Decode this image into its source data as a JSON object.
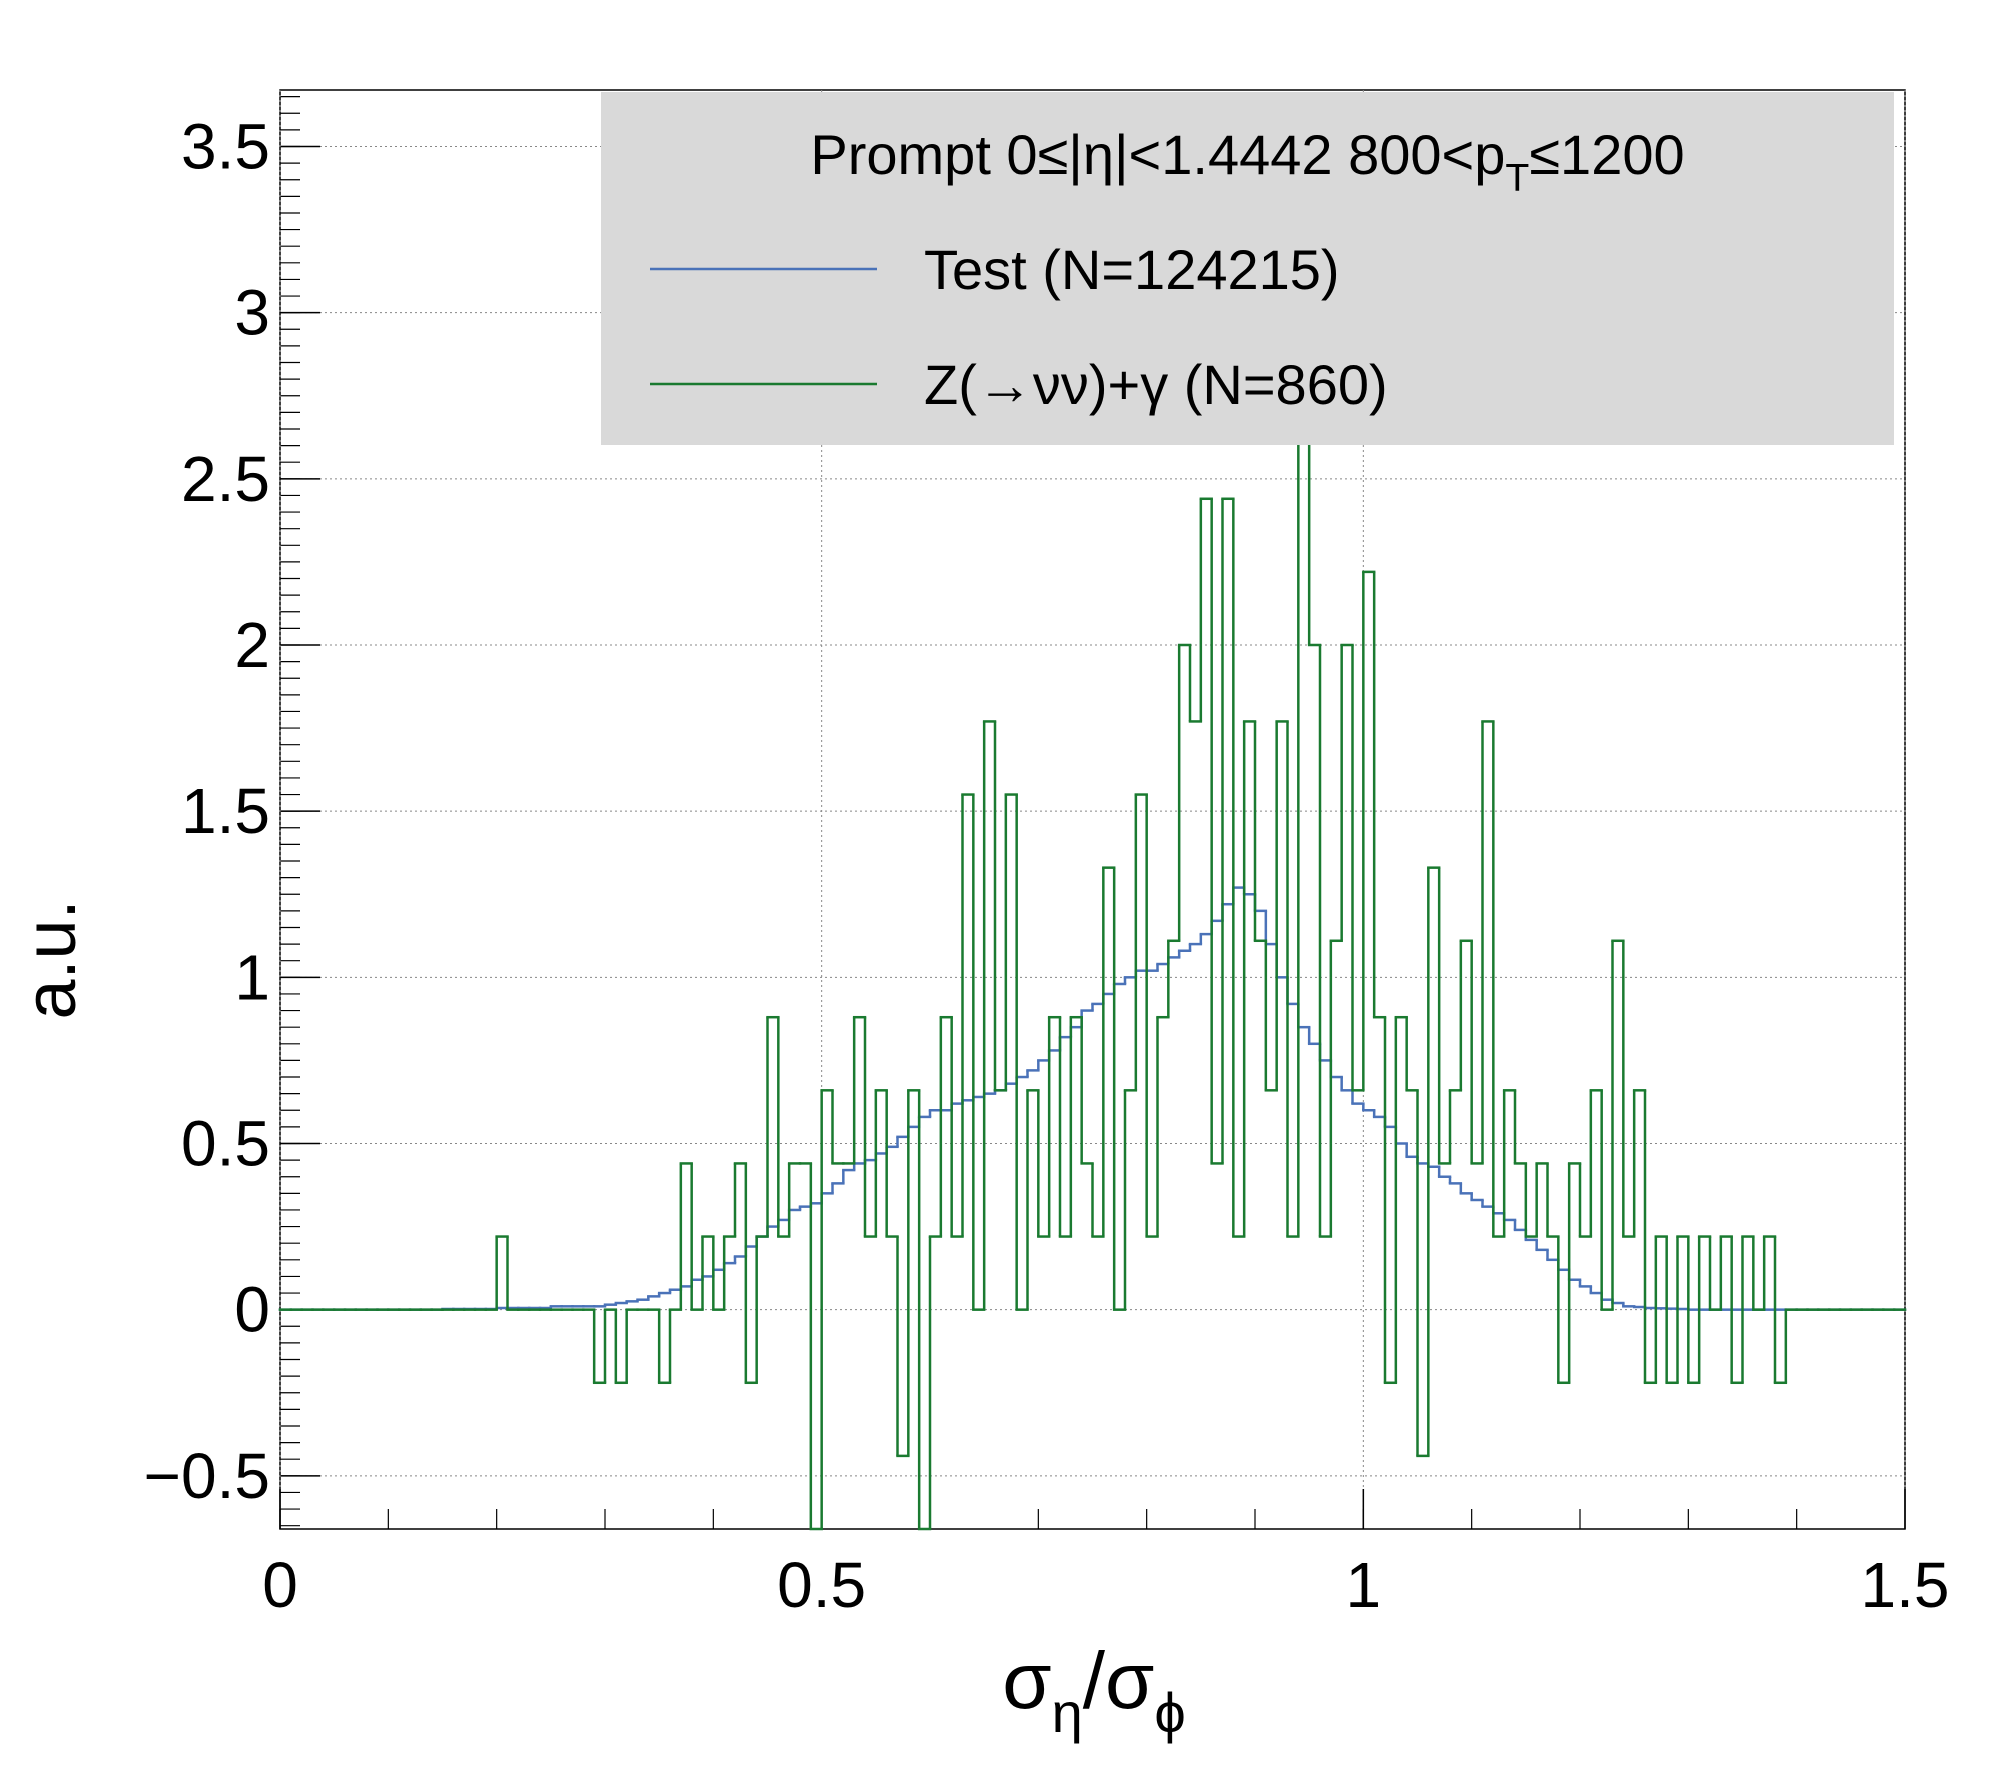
{
  "chart_data": {
    "type": "histogram",
    "legend_title": [
      "Prompt  0≤|η|<1.4442  800<p",
      "T",
      "≤1200"
    ],
    "xlabel": [
      "σ",
      "η",
      "/σ",
      "ϕ"
    ],
    "ylabel": "a.u.",
    "bins": [
      0,
      0.01,
      0.02,
      0.03,
      0.04,
      0.05,
      0.06,
      0.07,
      0.08,
      0.09,
      0.1,
      0.11,
      0.12,
      0.13,
      0.14,
      0.15,
      0.16,
      0.17,
      0.18,
      0.19,
      0.2,
      0.21,
      0.22,
      0.23,
      0.24,
      0.25,
      0.26,
      0.27,
      0.28,
      0.29,
      0.3,
      0.31,
      0.32,
      0.33,
      0.34,
      0.35,
      0.36,
      0.37,
      0.38,
      0.39,
      0.4,
      0.41,
      0.42,
      0.43,
      0.44,
      0.45,
      0.46,
      0.47,
      0.48,
      0.49,
      0.5,
      0.51,
      0.52,
      0.53,
      0.54,
      0.55,
      0.56,
      0.57,
      0.58,
      0.59,
      0.6,
      0.61,
      0.62,
      0.63,
      0.64,
      0.65,
      0.66,
      0.67,
      0.68,
      0.69,
      0.7,
      0.71,
      0.72,
      0.73,
      0.74,
      0.75,
      0.76,
      0.77,
      0.78,
      0.79,
      0.8,
      0.81,
      0.82,
      0.83,
      0.84,
      0.85,
      0.86,
      0.87,
      0.88,
      0.89,
      0.9,
      0.91,
      0.92,
      0.93,
      0.94,
      0.95,
      0.96,
      0.97,
      0.98,
      0.99,
      1,
      1.01,
      1.02,
      1.03,
      1.04,
      1.05,
      1.06,
      1.07,
      1.08,
      1.09,
      1.1,
      1.11,
      1.12,
      1.13,
      1.14,
      1.15,
      1.16,
      1.17,
      1.18,
      1.19,
      1.2,
      1.21,
      1.22,
      1.23,
      1.24,
      1.25,
      1.26,
      1.27,
      1.28,
      1.29,
      1.3,
      1.31,
      1.32,
      1.33,
      1.34,
      1.35,
      1.36,
      1.37,
      1.38,
      1.39,
      1.4,
      1.41,
      1.42,
      1.43,
      1.44,
      1.45,
      1.46,
      1.47,
      1.48,
      1.49,
      1.5
    ],
    "series": [
      {
        "name": "Test (N=124215)",
        "color": "#4a72b8",
        "values": [
          0,
          0,
          0,
          0,
          0,
          0,
          0,
          0,
          0,
          0,
          0,
          0,
          0,
          0,
          0,
          0.002,
          0.002,
          0.002,
          0.002,
          0.002,
          0.005,
          0.005,
          0.005,
          0.005,
          0.005,
          0.01,
          0.01,
          0.01,
          0.01,
          0.01,
          0.015,
          0.02,
          0.025,
          0.03,
          0.04,
          0.05,
          0.06,
          0.07,
          0.09,
          0.1,
          0.12,
          0.14,
          0.16,
          0.19,
          0.22,
          0.25,
          0.27,
          0.3,
          0.31,
          0.32,
          0.35,
          0.38,
          0.42,
          0.44,
          0.45,
          0.47,
          0.49,
          0.52,
          0.55,
          0.58,
          0.6,
          0.6,
          0.62,
          0.63,
          0.64,
          0.65,
          0.66,
          0.68,
          0.7,
          0.72,
          0.75,
          0.78,
          0.82,
          0.85,
          0.9,
          0.92,
          0.95,
          0.98,
          1.0,
          1.02,
          1.02,
          1.04,
          1.06,
          1.08,
          1.1,
          1.13,
          1.17,
          1.22,
          1.27,
          1.25,
          1.2,
          1.1,
          1.0,
          0.92,
          0.85,
          0.8,
          0.75,
          0.7,
          0.66,
          0.62,
          0.6,
          0.58,
          0.55,
          0.5,
          0.46,
          0.44,
          0.43,
          0.4,
          0.38,
          0.35,
          0.33,
          0.31,
          0.29,
          0.27,
          0.24,
          0.21,
          0.18,
          0.15,
          0.12,
          0.09,
          0.07,
          0.05,
          0.03,
          0.02,
          0.01,
          0.008,
          0.005,
          0.004,
          0.003,
          0.002,
          0,
          0,
          0,
          0,
          0,
          0,
          0,
          0,
          0,
          0,
          0,
          0,
          0,
          0,
          0,
          0,
          0,
          0,
          0,
          0
        ]
      },
      {
        "name": "Z(→νν)+γ (N=860)",
        "color": "#1a7a30",
        "values": [
          0,
          0,
          0,
          0,
          0,
          0,
          0,
          0,
          0,
          0,
          0,
          0,
          0,
          0,
          0,
          0,
          0,
          0,
          0,
          0,
          0.22,
          0,
          0,
          0,
          0,
          0,
          0,
          0,
          0,
          -0.22,
          0,
          -0.22,
          0,
          0,
          0,
          -0.22,
          0,
          0.44,
          0,
          0.22,
          0,
          0.22,
          0.44,
          -0.22,
          0.22,
          0.88,
          0.22,
          0.44,
          0.44,
          -0.66,
          0.66,
          0.44,
          0.44,
          0.88,
          0.22,
          0.66,
          0.22,
          -0.44,
          0.66,
          -0.66,
          0.22,
          0.88,
          0.22,
          1.55,
          0,
          1.77,
          0.66,
          1.55,
          0,
          0.66,
          0.22,
          0.88,
          0.22,
          0.88,
          0.44,
          0.22,
          1.33,
          0,
          0.66,
          1.55,
          0.22,
          0.88,
          1.11,
          2.0,
          1.77,
          2.44,
          0.44,
          2.44,
          0.22,
          1.77,
          1.11,
          0.66,
          1.77,
          0.22,
          2.66,
          2.0,
          0.22,
          1.11,
          2.0,
          0.66,
          2.22,
          0.88,
          -0.22,
          0.88,
          0.66,
          -0.44,
          1.33,
          0.44,
          0.66,
          1.11,
          0.44,
          1.77,
          0.22,
          0.66,
          0.44,
          0.22,
          0.44,
          0.22,
          -0.22,
          0.44,
          0.22,
          0.66,
          0,
          1.11,
          0.22,
          0.66,
          -0.22,
          0.22,
          -0.22,
          0.22,
          -0.22,
          0.22,
          0,
          0.22,
          -0.22,
          0.22,
          0,
          0.22,
          -0.22,
          0,
          0,
          0,
          0,
          0,
          0,
          0,
          0,
          0,
          0,
          0
        ]
      }
    ],
    "xlim": [
      0,
      1.5
    ],
    "ylim": [
      -0.66,
      3.67
    ],
    "xticks": [
      0,
      0.5,
      1,
      1.5
    ],
    "yticks": [
      {
        "value": -0.5,
        "label": "−0.5"
      },
      0,
      0.5,
      1,
      1.5,
      2,
      2.5,
      3,
      3.5
    ],
    "grid": true,
    "legend": "top-right"
  }
}
